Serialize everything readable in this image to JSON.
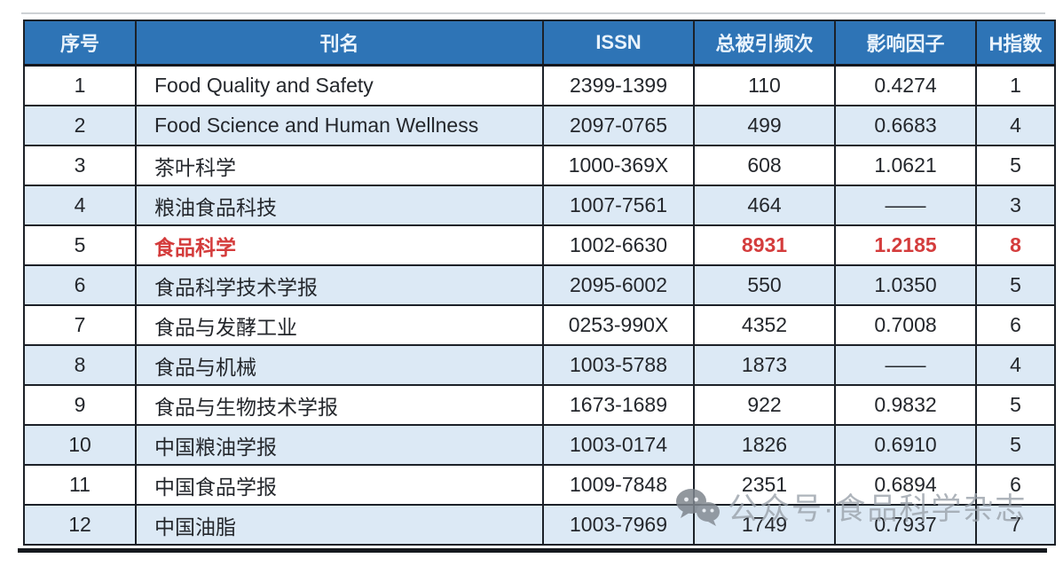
{
  "table": {
    "columns": [
      {
        "key": "index",
        "label": "序号"
      },
      {
        "key": "name",
        "label": "刊名"
      },
      {
        "key": "issn",
        "label": "ISSN"
      },
      {
        "key": "citations",
        "label": "总被引频次"
      },
      {
        "key": "impact_factor",
        "label": "影响因子"
      },
      {
        "key": "h_index",
        "label": "H指数"
      }
    ],
    "rows": [
      {
        "index": "1",
        "name": "Food Quality and Safety",
        "issn": "2399-1399",
        "citations": "110",
        "impact_factor": "0.4274",
        "h_index": "1",
        "highlight": false
      },
      {
        "index": "2",
        "name": "Food Science and Human Wellness",
        "issn": "2097-0765",
        "citations": "499",
        "impact_factor": "0.6683",
        "h_index": "4",
        "highlight": false
      },
      {
        "index": "3",
        "name": "茶叶科学",
        "issn": "1000-369X",
        "citations": "608",
        "impact_factor": "1.0621",
        "h_index": "5",
        "highlight": false
      },
      {
        "index": "4",
        "name": "粮油食品科技",
        "issn": "1007-7561",
        "citations": "464",
        "impact_factor": "——",
        "h_index": "3",
        "highlight": false
      },
      {
        "index": "5",
        "name": "食品科学",
        "issn": "1002-6630",
        "citations": "8931",
        "impact_factor": "1.2185",
        "h_index": "8",
        "highlight": true
      },
      {
        "index": "6",
        "name": "食品科学技术学报",
        "issn": "2095-6002",
        "citations": "550",
        "impact_factor": "1.0350",
        "h_index": "5",
        "highlight": false
      },
      {
        "index": "7",
        "name": "食品与发酵工业",
        "issn": "0253-990X",
        "citations": "4352",
        "impact_factor": "0.7008",
        "h_index": "6",
        "highlight": false
      },
      {
        "index": "8",
        "name": "食品与机械",
        "issn": "1003-5788",
        "citations": "1873",
        "impact_factor": "——",
        "h_index": "4",
        "highlight": false
      },
      {
        "index": "9",
        "name": "食品与生物技术学报",
        "issn": "1673-1689",
        "citations": "922",
        "impact_factor": "0.9832",
        "h_index": "5",
        "highlight": false
      },
      {
        "index": "10",
        "name": "中国粮油学报",
        "issn": "1003-0174",
        "citations": "1826",
        "impact_factor": "0.6910",
        "h_index": "5",
        "highlight": false
      },
      {
        "index": "11",
        "name": "中国食品学报",
        "issn": "1009-7848",
        "citations": "2351",
        "impact_factor": "0.6894",
        "h_index": "6",
        "highlight": false
      },
      {
        "index": "12",
        "name": "中国油脂",
        "issn": "1003-7969",
        "citations": "1749",
        "impact_factor": "0.7937",
        "h_index": "7",
        "highlight": false
      }
    ]
  },
  "watermark": {
    "icon": "wechat-icon",
    "text": "公众号·食品科学杂志"
  },
  "colors": {
    "header_bg": "#2e74b6",
    "header_text": "#e9f3fc",
    "row_alt_bg": "#dce9f5",
    "border": "#1c2128",
    "highlight_red": "#d43c3c",
    "watermark_gray": "#9aa2ab"
  }
}
